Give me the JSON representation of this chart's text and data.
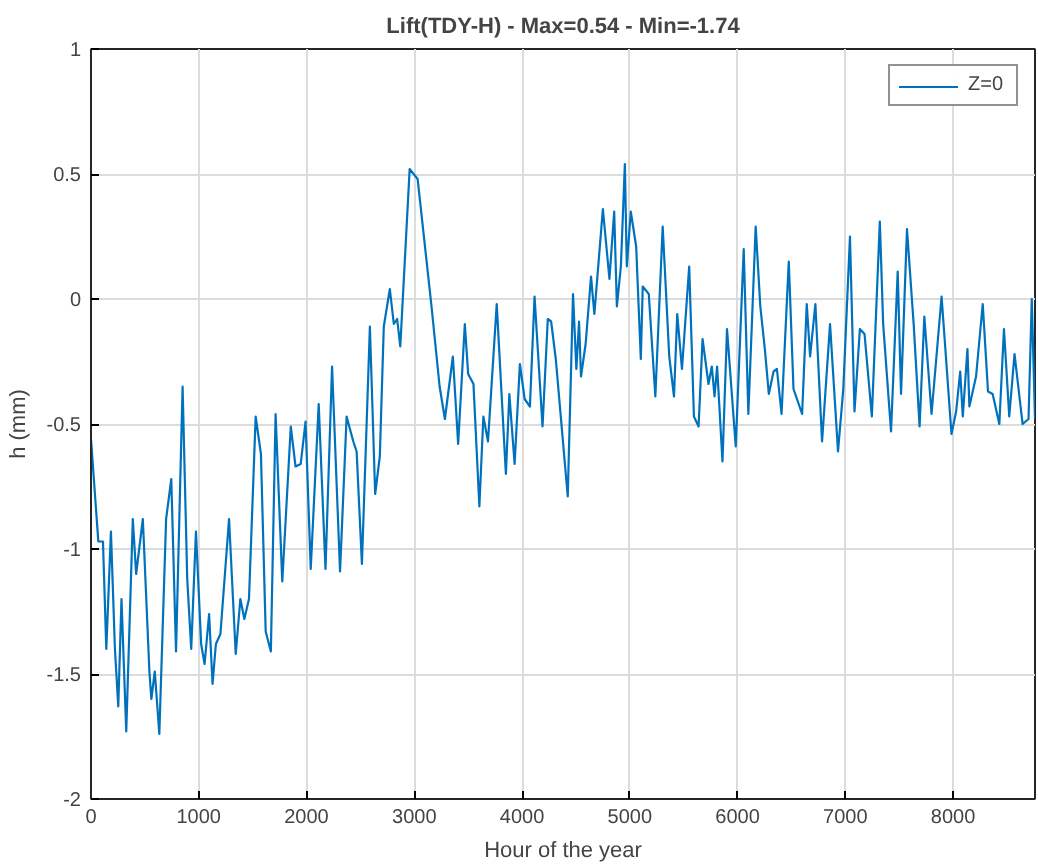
{
  "chart_data": {
    "type": "line",
    "title": "Lift(TDY-H) - Max=0.54 - Min=-1.74",
    "xlabel": "Hour of the year",
    "ylabel": "h (mm)",
    "xlim": [
      0,
      8760
    ],
    "ylim": [
      -2,
      1
    ],
    "xticks": [
      0,
      1000,
      2000,
      3000,
      4000,
      5000,
      6000,
      7000,
      8000
    ],
    "yticks": [
      -2,
      -1.5,
      -1,
      -0.5,
      0,
      0.5,
      1
    ],
    "grid": true,
    "legend": "top right",
    "line_style": "solid",
    "marker": "none",
    "series": [
      {
        "name": "Z=0",
        "color": "#0072bd",
        "x": [
          0,
          68,
          111,
          142,
          185,
          222,
          253,
          283,
          327,
          388,
          419,
          481,
          542,
          560,
          592,
          634,
          697,
          745,
          789,
          850,
          893,
          930,
          974,
          1022,
          1054,
          1096,
          1128,
          1159,
          1201,
          1281,
          1343,
          1386,
          1423,
          1466,
          1528,
          1577,
          1621,
          1669,
          1713,
          1775,
          1854,
          1898,
          1946,
          1991,
          2039,
          2113,
          2176,
          2237,
          2311,
          2372,
          2434,
          2465,
          2514,
          2588,
          2637,
          2680,
          2717,
          2773,
          2810,
          2841,
          2870,
          2957,
          3031,
          3160,
          3235,
          3284,
          3358,
          3407,
          3469,
          3500,
          3549,
          3604,
          3641,
          3684,
          3765,
          3850,
          3882,
          3931,
          3980,
          4024,
          4073,
          4116,
          4190,
          4239,
          4270,
          4313,
          4424,
          4473,
          4504,
          4529,
          4547,
          4590,
          4640,
          4671,
          4750,
          4811,
          4855,
          4880,
          4917,
          4954,
          4972,
          5009,
          5059,
          5102,
          5120,
          5176,
          5237,
          5305,
          5366,
          5410,
          5440,
          5484,
          5551,
          5595,
          5638,
          5675,
          5730,
          5761,
          5786,
          5810,
          5860,
          5902,
          5983,
          6057,
          6100,
          6168,
          6211,
          6253,
          6290,
          6334,
          6365,
          6408,
          6475,
          6519,
          6599,
          6642,
          6673,
          6722,
          6784,
          6858,
          6932,
          6981,
          7043,
          7085,
          7135,
          7178,
          7246,
          7320,
          7351,
          7424,
          7486,
          7517,
          7572,
          7634,
          7689,
          7733,
          7800,
          7893,
          7985,
          8028,
          8066,
          8090,
          8133,
          8151,
          8213,
          8275,
          8324,
          8367,
          8429,
          8472,
          8521,
          8570,
          8645,
          8700,
          8730,
          8760
        ],
        "values": [
          -0.56,
          -0.97,
          -0.97,
          -1.4,
          -0.93,
          -1.4,
          -1.63,
          -1.2,
          -1.73,
          -0.88,
          -1.1,
          -0.88,
          -1.49,
          -1.6,
          -1.49,
          -1.74,
          -0.88,
          -0.72,
          -1.41,
          -0.35,
          -1.12,
          -1.4,
          -0.93,
          -1.38,
          -1.46,
          -1.26,
          -1.54,
          -1.38,
          -1.34,
          -0.88,
          -1.42,
          -1.2,
          -1.28,
          -1.2,
          -0.47,
          -0.62,
          -1.33,
          -1.41,
          -0.46,
          -1.13,
          -0.51,
          -0.67,
          -0.66,
          -0.49,
          -1.08,
          -0.42,
          -1.08,
          -0.27,
          -1.09,
          -0.47,
          -0.57,
          -0.61,
          -1.06,
          -0.11,
          -0.78,
          -0.63,
          -0.11,
          0.04,
          -0.1,
          -0.08,
          -0.19,
          0.52,
          0.48,
          -0.03,
          -0.35,
          -0.48,
          -0.23,
          -0.58,
          -0.1,
          -0.3,
          -0.34,
          -0.83,
          -0.47,
          -0.57,
          -0.02,
          -0.7,
          -0.38,
          -0.66,
          -0.26,
          -0.4,
          -0.43,
          0.01,
          -0.51,
          -0.08,
          -0.09,
          -0.24,
          -0.79,
          0.02,
          -0.28,
          -0.09,
          -0.31,
          -0.18,
          0.09,
          -0.06,
          0.36,
          0.08,
          0.35,
          -0.03,
          0.13,
          0.54,
          0.13,
          0.35,
          0.21,
          -0.24,
          0.05,
          0.02,
          -0.39,
          0.29,
          -0.23,
          -0.39,
          -0.06,
          -0.28,
          0.13,
          -0.47,
          -0.51,
          -0.16,
          -0.34,
          -0.27,
          -0.39,
          -0.27,
          -0.65,
          -0.12,
          -0.59,
          0.2,
          -0.46,
          0.29,
          -0.03,
          -0.2,
          -0.38,
          -0.29,
          -0.28,
          -0.46,
          0.15,
          -0.36,
          -0.46,
          -0.02,
          -0.23,
          -0.02,
          -0.57,
          -0.1,
          -0.61,
          -0.36,
          0.25,
          -0.45,
          -0.12,
          -0.14,
          -0.47,
          0.31,
          -0.1,
          -0.53,
          0.11,
          -0.38,
          0.28,
          -0.1,
          -0.51,
          -0.07,
          -0.46,
          0.01,
          -0.54,
          -0.45,
          -0.29,
          -0.47,
          -0.2,
          -0.43,
          -0.31,
          -0.02,
          -0.37,
          -0.38,
          -0.5,
          -0.12,
          -0.47,
          -0.22,
          -0.5,
          -0.48,
          0.0,
          -0.48
        ]
      }
    ]
  }
}
